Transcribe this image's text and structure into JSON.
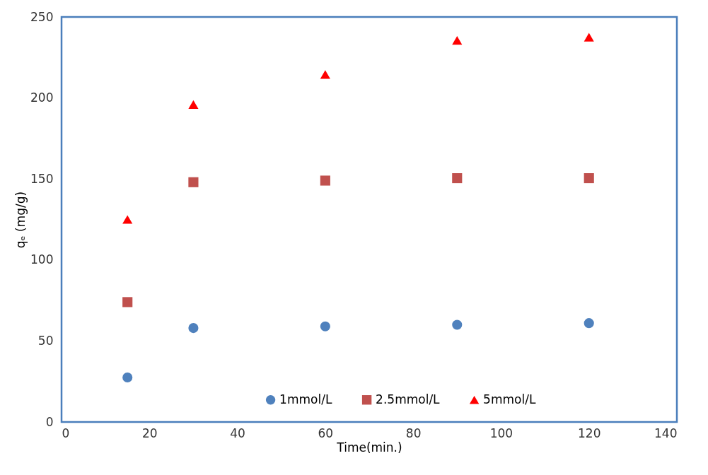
{
  "chart_data": {
    "type": "scatter",
    "xlabel": "Time(min.)",
    "ylabel": "qₑ (mg/g)",
    "xlim": [
      0,
      140
    ],
    "xticks": [
      0,
      20,
      40,
      60,
      80,
      100,
      120,
      140
    ],
    "ylim": [
      0,
      250
    ],
    "yticks": [
      0,
      50,
      100,
      150,
      200,
      250
    ],
    "grid": false,
    "legend": "bottom",
    "x": [
      15,
      30,
      60,
      90,
      120
    ],
    "series": [
      {
        "name": "1mmol/L",
        "color": "#4f81bd",
        "marker": "circle",
        "values": [
          27.5,
          58,
          59,
          60,
          61
        ]
      },
      {
        "name": "2.5mmol/L",
        "color": "#c0504d",
        "marker": "square",
        "values": [
          74,
          148,
          149,
          150.5,
          150.5
        ]
      },
      {
        "name": "5mmol/L",
        "color": "#ff0000",
        "marker": "triangle",
        "values": [
          125,
          196,
          214.5,
          235.5,
          237.5
        ]
      }
    ]
  }
}
